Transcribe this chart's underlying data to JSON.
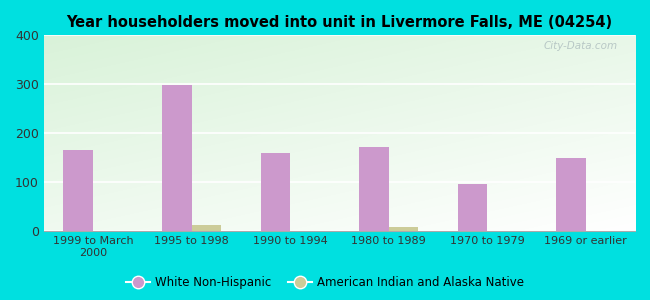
{
  "title": "Year householders moved into unit in Livermore Falls, ME (04254)",
  "categories": [
    "1999 to March\n2000",
    "1995 to 1998",
    "1990 to 1994",
    "1980 to 1989",
    "1970 to 1979",
    "1969 or earlier"
  ],
  "white_non_hispanic": [
    165,
    298,
    160,
    172,
    95,
    150
  ],
  "american_indian": [
    0,
    12,
    0,
    8,
    0,
    0
  ],
  "white_color": "#cc99cc",
  "indian_color": "#cccc99",
  "ylim": [
    0,
    400
  ],
  "yticks": [
    0,
    100,
    200,
    300,
    400
  ],
  "bg_outer": "#00e0e0",
  "bar_width": 0.3,
  "legend_labels": [
    "White Non-Hispanic",
    "American Indian and Alaska Native"
  ],
  "watermark": "City-Data.com"
}
